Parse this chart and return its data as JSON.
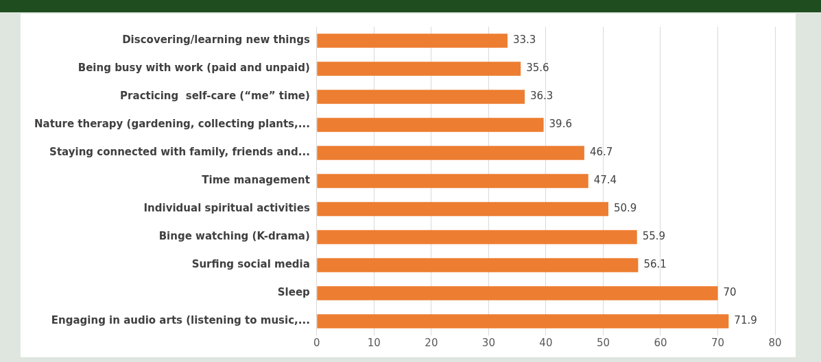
{
  "chart_data": {
    "type": "bar",
    "orientation": "horizontal",
    "categories": [
      "Discovering/learning new things",
      "Being busy with work (paid and unpaid)",
      "Practicing  self-care (“me” time)",
      "Nature therapy (gardening, collecting plants,...",
      "Staying connected with family, friends and...",
      "Time management",
      "Individual spiritual activities",
      "Binge watching (K-drama)",
      "Surfing social media",
      "Sleep",
      "Engaging in audio arts (listening to music,..."
    ],
    "values": [
      33.3,
      35.6,
      36.3,
      39.6,
      46.7,
      47.4,
      50.9,
      55.9,
      56.1,
      70,
      71.9
    ],
    "color": "#ed7d31",
    "xlim": [
      0,
      80
    ],
    "xticks": [
      0,
      10,
      20,
      30,
      40,
      50,
      60,
      70,
      80
    ],
    "grid": "x",
    "data_labels": true,
    "legend": false
  }
}
